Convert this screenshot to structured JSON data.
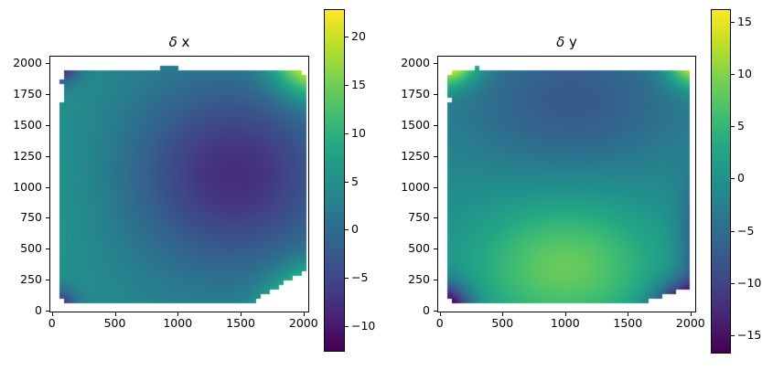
{
  "figure": {
    "background": "#ffffff"
  },
  "colormap": {
    "name": "viridis",
    "stops": [
      "#440154",
      "#482475",
      "#414487",
      "#355f8d",
      "#2a788e",
      "#21918c",
      "#22a884",
      "#44bf70",
      "#7ad151",
      "#bddf26",
      "#fde725"
    ]
  },
  "chart_data": [
    {
      "type": "heatmap",
      "title": "δ x",
      "title_symbol": "δ",
      "title_rest": " x",
      "xlabel": "",
      "ylabel": "",
      "x_ticks": [
        0,
        500,
        1000,
        1500,
        2000
      ],
      "y_ticks": [
        0,
        250,
        500,
        750,
        1000,
        1250,
        1500,
        1750,
        2000
      ],
      "xlim": [
        -20,
        2045
      ],
      "ylim": [
        -15,
        2060
      ],
      "grid": false,
      "colorbar": {
        "vmin": -12.55,
        "vmax": 22.74,
        "ticks": [
          20,
          15,
          10,
          5,
          0,
          -5,
          -10
        ],
        "position": "right"
      },
      "field": {
        "base": 4,
        "blobs": [
          {
            "cx": 1450,
            "cy": 1100,
            "sx": 600,
            "sy": 550,
            "amp": -12
          },
          {
            "cx": -250,
            "cy": 950,
            "sx": 450,
            "sy": 800,
            "amp": 2.5
          },
          {
            "cx": 2100,
            "cy": -60,
            "sx": 230,
            "sy": 230,
            "amp": 27
          },
          {
            "cx": 2100,
            "cy": 2080,
            "sx": 230,
            "sy": 230,
            "amp": 24
          },
          {
            "cx": 30,
            "cy": 2030,
            "sx": 120,
            "sy": 120,
            "amp": -18
          },
          {
            "cx": 30,
            "cy": 0,
            "sx": 110,
            "sy": 110,
            "amp": -15
          }
        ]
      },
      "boundary": [
        [
          62,
          100
        ],
        [
          56,
          420
        ],
        [
          64,
          445
        ],
        [
          56,
          940
        ],
        [
          64,
          970
        ],
        [
          58,
          1680
        ],
        [
          76,
          1705
        ],
        [
          70,
          1880
        ],
        [
          92,
          1948
        ],
        [
          240,
          1950
        ],
        [
          335,
          1965
        ],
        [
          640,
          1956
        ],
        [
          935,
          1970
        ],
        [
          1260,
          1958
        ],
        [
          1660,
          1956
        ],
        [
          1875,
          1946
        ],
        [
          1990,
          1960
        ],
        [
          2008,
          1926
        ],
        [
          2030,
          1930
        ],
        [
          2030,
          1722
        ],
        [
          2037,
          1700
        ],
        [
          2036,
          1035
        ],
        [
          2014,
          1005
        ],
        [
          2016,
          688
        ],
        [
          2035,
          662
        ],
        [
          2037,
          335
        ],
        [
          2013,
          316
        ],
        [
          1650,
          95
        ],
        [
          1598,
          58
        ],
        [
          1080,
          50
        ],
        [
          1015,
          66
        ],
        [
          700,
          58
        ],
        [
          425,
          70
        ],
        [
          395,
          52
        ],
        [
          115,
          60
        ],
        [
          88,
          72
        ]
      ]
    },
    {
      "type": "heatmap",
      "title": "δ y",
      "title_symbol": "δ",
      "title_rest": " y",
      "xlabel": "",
      "ylabel": "",
      "x_ticks": [
        0,
        500,
        1000,
        1500,
        2000
      ],
      "y_ticks": [
        0,
        250,
        500,
        750,
        1000,
        1250,
        1500,
        1750,
        2000
      ],
      "xlim": [
        -20,
        2045
      ],
      "ylim": [
        -15,
        2060
      ],
      "grid": false,
      "colorbar": {
        "vmin": -16.66,
        "vmax": 16.13,
        "ticks": [
          15,
          10,
          5,
          0,
          -5,
          -10,
          -15
        ],
        "position": "right"
      },
      "field": {
        "base": -1,
        "blobs": [
          {
            "cx": 1050,
            "cy": 1700,
            "sx": 650,
            "sy": 420,
            "amp": -6.5
          },
          {
            "cx": 1000,
            "cy": 350,
            "sx": 520,
            "sy": 380,
            "amp": 9.5
          },
          {
            "cx": 40,
            "cy": 2060,
            "sx": 170,
            "sy": 150,
            "amp": 24
          },
          {
            "cx": 2070,
            "cy": 2040,
            "sx": 170,
            "sy": 150,
            "amp": 21
          },
          {
            "cx": 20,
            "cy": -20,
            "sx": 150,
            "sy": 150,
            "amp": -22
          },
          {
            "cx": 2020,
            "cy": -30,
            "sx": 200,
            "sy": 160,
            "amp": -26
          },
          {
            "cx": 2120,
            "cy": 550,
            "sx": 130,
            "sy": 350,
            "amp": -9
          }
        ]
      },
      "boundary": [
        [
          52,
          110
        ],
        [
          60,
          430
        ],
        [
          50,
          460
        ],
        [
          58,
          950
        ],
        [
          50,
          985
        ],
        [
          58,
          1680
        ],
        [
          72,
          1705
        ],
        [
          66,
          1885
        ],
        [
          86,
          1950
        ],
        [
          115,
          1962
        ],
        [
          315,
          1968
        ],
        [
          425,
          1948
        ],
        [
          645,
          1960
        ],
        [
          945,
          1954
        ],
        [
          1260,
          1965
        ],
        [
          1605,
          1954
        ],
        [
          1720,
          1934
        ],
        [
          2000,
          1938
        ],
        [
          2014,
          1906
        ],
        [
          2008,
          1700
        ],
        [
          2016,
          1678
        ],
        [
          2012,
          1062
        ],
        [
          2002,
          1030
        ],
        [
          2006,
          762
        ],
        [
          1992,
          732
        ],
        [
          1996,
          508
        ],
        [
          2010,
          482
        ],
        [
          2006,
          258
        ],
        [
          1983,
          178
        ],
        [
          1590,
          42
        ],
        [
          1100,
          50
        ],
        [
          1040,
          38
        ],
        [
          700,
          55
        ],
        [
          430,
          48
        ],
        [
          400,
          62
        ],
        [
          120,
          52
        ],
        [
          78,
          68
        ]
      ]
    }
  ]
}
